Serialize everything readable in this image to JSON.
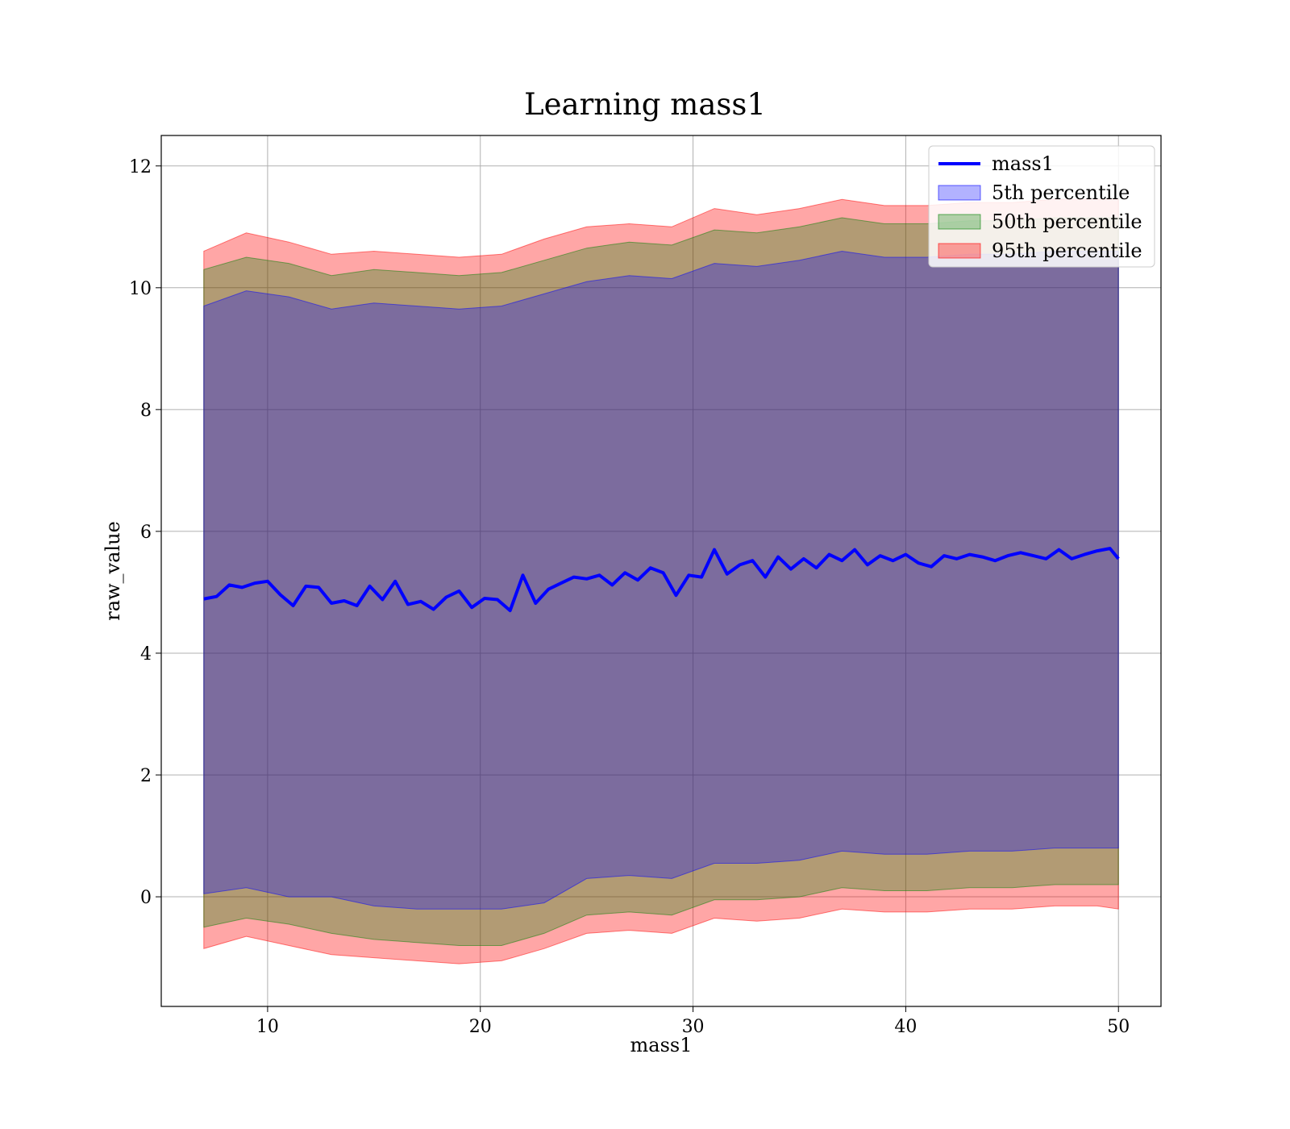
{
  "chart_data": {
    "type": "area",
    "title": "Learning mass1",
    "xlabel": "mass1",
    "ylabel": "raw_value",
    "xlim": [
      5,
      52
    ],
    "ylim": [
      -1.8,
      12.5
    ],
    "x_ticks": [
      10,
      20,
      30,
      40,
      50
    ],
    "y_ticks": [
      0,
      2,
      4,
      6,
      8,
      10,
      12
    ],
    "grid": true,
    "legend_position": "top-right",
    "series": [
      {
        "name": "mass1",
        "kind": "line",
        "color": "#0000ff",
        "x": [
          7.0,
          7.6,
          8.2,
          8.8,
          9.4,
          10.0,
          10.6,
          11.2,
          11.8,
          12.4,
          13.0,
          13.6,
          14.2,
          14.8,
          15.4,
          16.0,
          16.6,
          17.2,
          17.8,
          18.4,
          19.0,
          19.6,
          20.2,
          20.8,
          21.4,
          22.0,
          22.6,
          23.2,
          23.8,
          24.4,
          25.0,
          25.6,
          26.2,
          26.8,
          27.4,
          28.0,
          28.6,
          29.2,
          29.8,
          30.4,
          31.0,
          31.6,
          32.2,
          32.8,
          33.4,
          34.0,
          34.6,
          35.2,
          35.8,
          36.4,
          37.0,
          37.6,
          38.2,
          38.8,
          39.4,
          40.0,
          40.6,
          41.2,
          41.8,
          42.4,
          43.0,
          43.6,
          44.2,
          44.8,
          45.4,
          46.0,
          46.6,
          47.2,
          47.8,
          48.4,
          49.0,
          49.6,
          50.0
        ],
        "y": [
          4.89,
          4.93,
          5.12,
          5.08,
          5.15,
          5.18,
          4.96,
          4.78,
          5.1,
          5.08,
          4.82,
          4.86,
          4.78,
          5.1,
          4.88,
          5.18,
          4.8,
          4.85,
          4.72,
          4.92,
          5.02,
          4.75,
          4.9,
          4.88,
          4.7,
          5.28,
          4.82,
          5.05,
          5.15,
          5.25,
          5.22,
          5.28,
          5.12,
          5.32,
          5.2,
          5.4,
          5.32,
          4.95,
          5.28,
          5.25,
          5.7,
          5.3,
          5.45,
          5.52,
          5.25,
          5.58,
          5.38,
          5.55,
          5.4,
          5.62,
          5.52,
          5.7,
          5.45,
          5.6,
          5.52,
          5.62,
          5.48,
          5.42,
          5.6,
          5.55,
          5.62,
          5.58,
          5.52,
          5.6,
          5.65,
          5.6,
          5.55,
          5.7,
          5.55,
          5.62,
          5.68,
          5.72,
          5.55
        ]
      },
      {
        "name": "5th percentile",
        "kind": "band",
        "color": "#0000ff",
        "opacity": 0.3,
        "x": [
          7.0,
          9.0,
          11.0,
          13.0,
          15.0,
          17.0,
          19.0,
          21.0,
          23.0,
          25.0,
          27.0,
          29.0,
          31.0,
          33.0,
          35.0,
          37.0,
          39.0,
          41.0,
          43.0,
          45.0,
          47.0,
          49.0,
          50.0
        ],
        "lower": [
          0.05,
          0.15,
          0.0,
          0.0,
          -0.15,
          -0.2,
          -0.2,
          -0.2,
          -0.1,
          0.3,
          0.35,
          0.3,
          0.55,
          0.55,
          0.6,
          0.75,
          0.7,
          0.7,
          0.75,
          0.75,
          0.8,
          0.8,
          0.8
        ],
        "upper": [
          9.7,
          9.95,
          9.85,
          9.65,
          9.75,
          9.7,
          9.65,
          9.7,
          9.9,
          10.1,
          10.2,
          10.15,
          10.4,
          10.35,
          10.45,
          10.6,
          10.5,
          10.5,
          10.55,
          10.55,
          10.6,
          10.6,
          10.6
        ]
      },
      {
        "name": "50th percentile",
        "kind": "band",
        "color": "#008000",
        "opacity": 0.3,
        "x": [
          7.0,
          9.0,
          11.0,
          13.0,
          15.0,
          17.0,
          19.0,
          21.0,
          23.0,
          25.0,
          27.0,
          29.0,
          31.0,
          33.0,
          35.0,
          37.0,
          39.0,
          41.0,
          43.0,
          45.0,
          47.0,
          49.0,
          50.0
        ],
        "lower": [
          -0.5,
          -0.35,
          -0.45,
          -0.6,
          -0.7,
          -0.75,
          -0.8,
          -0.8,
          -0.6,
          -0.3,
          -0.25,
          -0.3,
          -0.05,
          -0.05,
          0.0,
          0.15,
          0.1,
          0.1,
          0.15,
          0.15,
          0.2,
          0.2,
          0.2
        ],
        "upper": [
          10.3,
          10.5,
          10.4,
          10.2,
          10.3,
          10.25,
          10.2,
          10.25,
          10.45,
          10.65,
          10.75,
          10.7,
          10.95,
          10.9,
          11.0,
          11.15,
          11.05,
          11.05,
          11.1,
          11.1,
          11.15,
          11.15,
          11.15
        ]
      },
      {
        "name": "95th percentile",
        "kind": "band",
        "color": "#ff0000",
        "opacity": 0.35,
        "x": [
          7.0,
          9.0,
          11.0,
          13.0,
          15.0,
          17.0,
          19.0,
          21.0,
          23.0,
          25.0,
          27.0,
          29.0,
          31.0,
          33.0,
          35.0,
          37.0,
          39.0,
          41.0,
          43.0,
          45.0,
          47.0,
          49.0,
          50.0
        ],
        "lower": [
          -0.85,
          -0.65,
          -0.8,
          -0.95,
          -1.0,
          -1.05,
          -1.1,
          -1.05,
          -0.85,
          -0.6,
          -0.55,
          -0.6,
          -0.35,
          -0.4,
          -0.35,
          -0.2,
          -0.25,
          -0.25,
          -0.2,
          -0.2,
          -0.15,
          -0.15,
          -0.2
        ],
        "upper": [
          10.6,
          10.9,
          10.75,
          10.55,
          10.6,
          10.55,
          10.5,
          10.55,
          10.8,
          11.0,
          11.05,
          11.0,
          11.3,
          11.2,
          11.3,
          11.45,
          11.35,
          11.35,
          11.4,
          11.4,
          11.45,
          11.45,
          11.45
        ]
      }
    ]
  }
}
